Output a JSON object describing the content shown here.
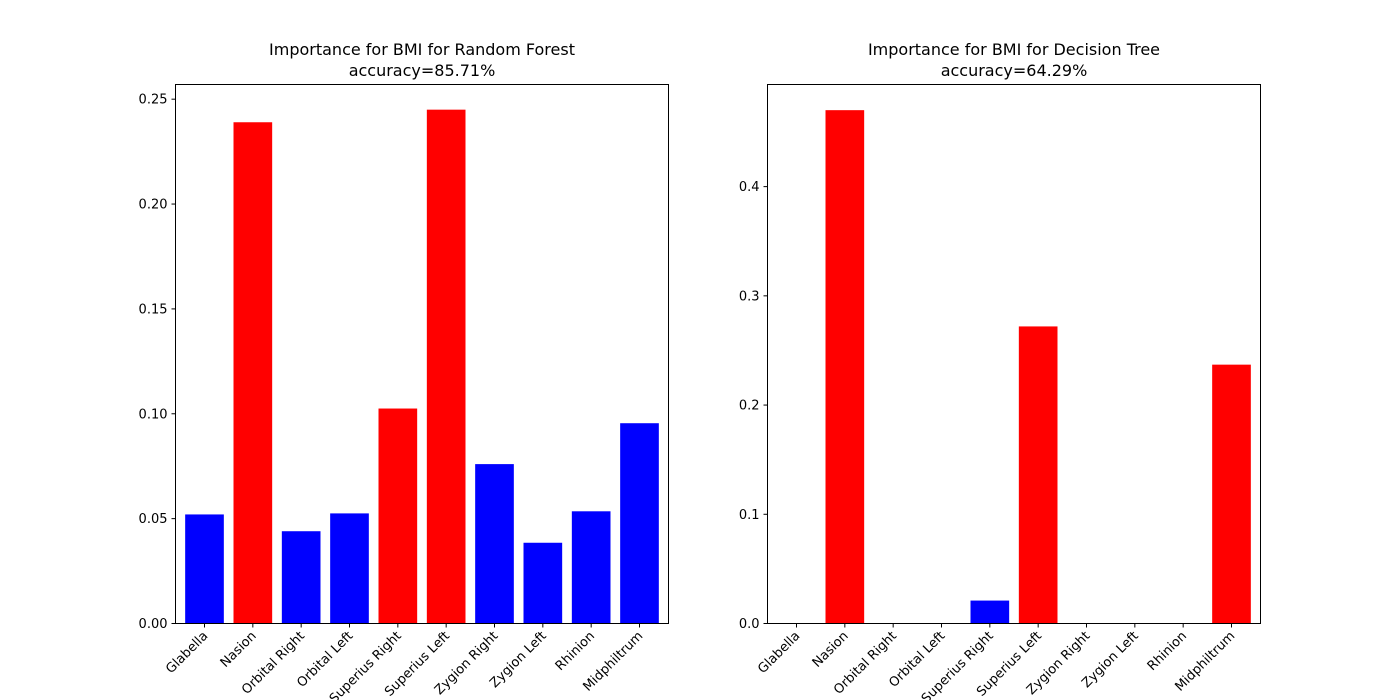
{
  "chart_data": [
    {
      "type": "bar",
      "title": "Importance for BMI for Random Forest",
      "subtitle": "accuracy=85.71%",
      "categories": [
        "Glabella",
        "Nasion",
        "Orbital Right",
        "Orbital Left",
        "Superius Right",
        "Superius Left",
        "Zygion Right",
        "Zygion Left",
        "Rhinion",
        "Midphiltrum"
      ],
      "values": [
        0.052,
        0.239,
        0.044,
        0.0525,
        0.1025,
        0.245,
        0.076,
        0.0385,
        0.0535,
        0.0955
      ],
      "colors": [
        "#0000ff",
        "#ff0000",
        "#0000ff",
        "#0000ff",
        "#ff0000",
        "#ff0000",
        "#0000ff",
        "#0000ff",
        "#0000ff",
        "#0000ff"
      ],
      "ylim": [
        0,
        0.257
      ],
      "yticks": [
        0.0,
        0.05,
        0.1,
        0.15,
        0.2,
        0.25
      ],
      "ytick_labels": [
        "0.00",
        "0.05",
        "0.10",
        "0.15",
        "0.20",
        "0.25"
      ],
      "xlabel": "",
      "ylabel": "",
      "grid": false
    },
    {
      "type": "bar",
      "title": "Importance for BMI for Decision Tree",
      "subtitle": "accuracy=64.29%",
      "categories": [
        "Glabella",
        "Nasion",
        "Orbital Right",
        "Orbital Left",
        "Superius Right",
        "Superius Left",
        "Zygion Right",
        "Zygion Left",
        "Rhinion",
        "Midphiltrum"
      ],
      "values": [
        0.0,
        0.47,
        0.0,
        0.0,
        0.021,
        0.272,
        0.0,
        0.0,
        0.0,
        0.237
      ],
      "colors": [
        "#0000ff",
        "#ff0000",
        "#0000ff",
        "#0000ff",
        "#0000ff",
        "#ff0000",
        "#0000ff",
        "#0000ff",
        "#0000ff",
        "#ff0000"
      ],
      "ylim": [
        0,
        0.4935
      ],
      "yticks": [
        0.0,
        0.1,
        0.2,
        0.3,
        0.4
      ],
      "ytick_labels": [
        "0.0",
        "0.1",
        "0.2",
        "0.3",
        "0.4"
      ],
      "xlabel": "",
      "ylabel": "",
      "grid": false
    }
  ]
}
